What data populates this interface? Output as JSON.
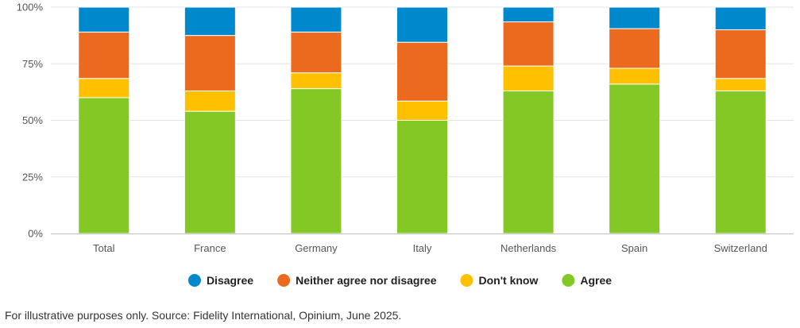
{
  "chart_data": {
    "type": "bar",
    "stacked": true,
    "categories": [
      "Total",
      "France",
      "Germany",
      "Italy",
      "Netherlands",
      "Spain",
      "Switzerland"
    ],
    "series": [
      {
        "name": "Agree",
        "color": "#84c825",
        "values": [
          60,
          54,
          64,
          50,
          63,
          66,
          63
        ]
      },
      {
        "name": "Don't know",
        "color": "#ffc000",
        "values": [
          8.5,
          9,
          7,
          8.5,
          11,
          7,
          5.5
        ]
      },
      {
        "name": "Neither agree nor disagree",
        "color": "#eb6a1e",
        "values": [
          20.5,
          24.5,
          18,
          26,
          19.5,
          17.5,
          21.5
        ]
      },
      {
        "name": "Disagree",
        "color": "#0088cc",
        "values": [
          11,
          12.5,
          11,
          15.5,
          6.5,
          9.5,
          10
        ]
      }
    ],
    "legend_order": [
      "Disagree",
      "Neither agree nor disagree",
      "Don't know",
      "Agree"
    ],
    "y_ticks": [
      "0%",
      "25%",
      "50%",
      "75%",
      "100%"
    ],
    "ylim": [
      0,
      100
    ],
    "legend_position": "bottom",
    "grid": true
  },
  "footnote": "For illustrative purposes only. Source: Fidelity International, Opinium, June 2025."
}
